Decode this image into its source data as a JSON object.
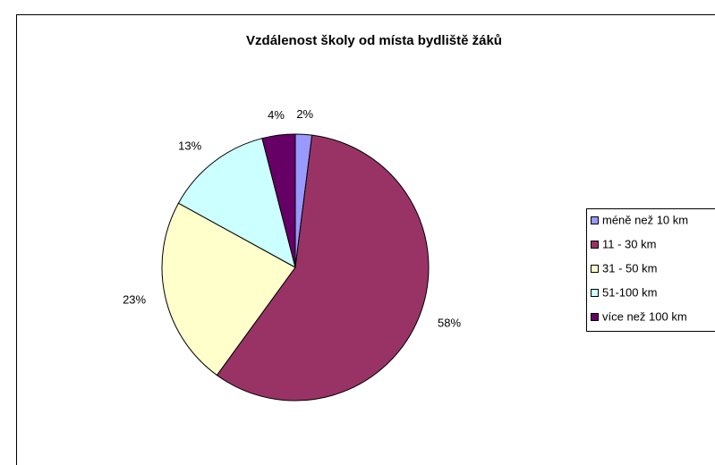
{
  "chart_data": {
    "type": "pie",
    "title": "Vzdálenost školy od místa bydliště žáků",
    "categories": [
      "méně než 10 km",
      "11 - 30 km",
      "31 - 50 km",
      "51-100 km",
      "více než 100 km"
    ],
    "values": [
      2,
      58,
      23,
      13,
      4
    ],
    "value_labels": [
      "2%",
      "58%",
      "23%",
      "13%",
      "4%"
    ],
    "colors": [
      "#9999ff",
      "#993366",
      "#ffffcc",
      "#ccffff",
      "#660066"
    ],
    "legend": "right"
  }
}
